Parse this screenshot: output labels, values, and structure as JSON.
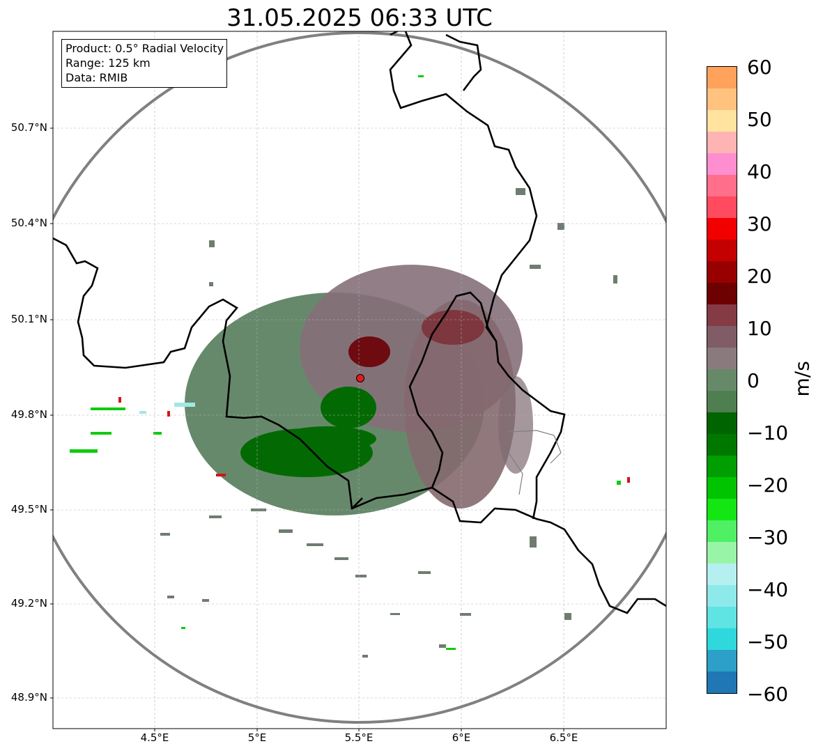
{
  "title": "31.05.2025 06:33 UTC",
  "info": {
    "product": "Product: 0.5° Radial Velocity",
    "range": "Range: 125 km",
    "source": "Data: RMIB"
  },
  "axes": {
    "x_ticks": [
      "4.5°E",
      "5°E",
      "5.5°E",
      "6°E",
      "6.5°E"
    ],
    "y_ticks": [
      "50.7°N",
      "50.4°N",
      "50.1°N",
      "49.8°N",
      "49.5°N",
      "49.2°N",
      "48.9°N"
    ]
  },
  "colorbar": {
    "unit": "m/s",
    "ticks": [
      "60",
      "50",
      "40",
      "30",
      "20",
      "10",
      "0",
      "−10",
      "−20",
      "−30",
      "−40",
      "−50",
      "−60"
    ],
    "range": [
      -60,
      60
    ],
    "colors": [
      "#1f77b4",
      "#2ca0c8",
      "#2ed8dc",
      "#5fe3e3",
      "#8ee9ea",
      "#b5eff0",
      "#98f5a8",
      "#4ff064",
      "#13e613",
      "#00c400",
      "#009e00",
      "#007800",
      "#006400",
      "#4f7f51",
      "#668a69",
      "#8a7a7e",
      "#7f5c66",
      "#843b44",
      "#6d0000",
      "#980000",
      "#c40000",
      "#f20000",
      "#ff4a5f",
      "#ff6e8a",
      "#ff8ed0",
      "#ffb4b4",
      "#ffe39e",
      "#ffc27f",
      "#ffa25b"
    ]
  },
  "map": {
    "radar_site": {
      "lon": 5.505,
      "lat": 49.915
    },
    "background": "#ffffff",
    "range_ring_color": "#808080",
    "border_color": "#000000"
  }
}
